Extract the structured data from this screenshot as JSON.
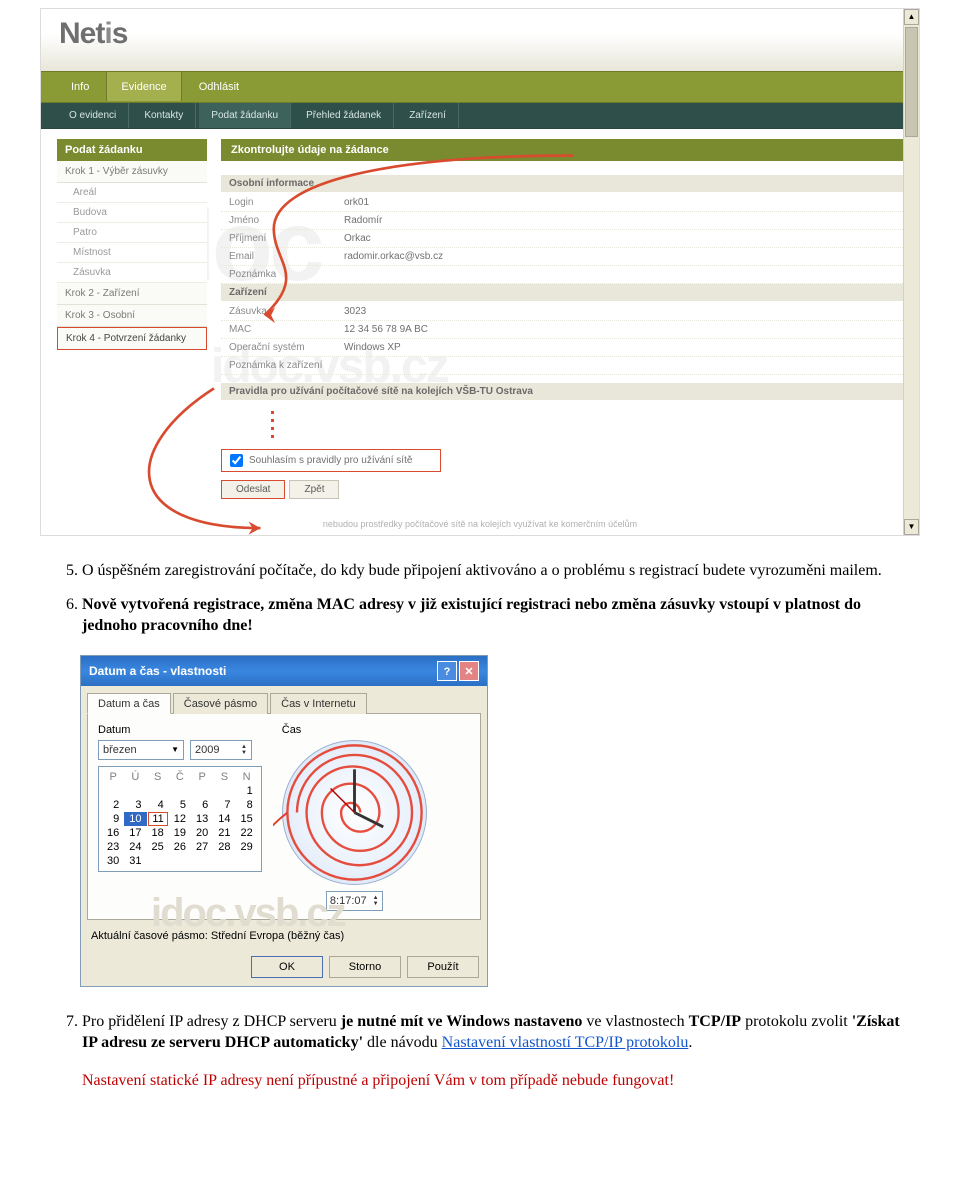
{
  "netis": {
    "logo": "Netis",
    "watermark_big": "idoc",
    "watermark_url": "idoc.vsb.cz",
    "main_tabs": [
      "Info",
      "Evidence",
      "Odhlásit"
    ],
    "main_active": 1,
    "sub_tabs": [
      "O evidenci",
      "Kontakty",
      "Podat žádanku",
      "Přehled žádanek",
      "Zařízení"
    ],
    "sub_active": 2,
    "sidebar": {
      "title": "Podat žádanku",
      "steps": [
        {
          "label": "Krok 1 - Výběr zásuvky",
          "subs": [
            "Areál",
            "Budova",
            "Patro",
            "Místnost",
            "Zásuvka"
          ]
        },
        {
          "label": "Krok 2 - Zařízení",
          "subs": []
        },
        {
          "label": "Krok 3 - Osobní",
          "subs": []
        },
        {
          "label": "Krok 4 - Potvrzení žádanky",
          "subs": [],
          "active": true
        }
      ]
    },
    "main": {
      "title": "Zkontrolujte údaje na žádance",
      "section_personal": "Osobní informace",
      "personal": [
        {
          "k": "Login",
          "v": "ork01"
        },
        {
          "k": "Jméno",
          "v": "Radomír"
        },
        {
          "k": "Příjmení",
          "v": "Orkac"
        },
        {
          "k": "Email",
          "v": "radomir.orkac@vsb.cz"
        },
        {
          "k": "Poznámka",
          "v": ""
        }
      ],
      "section_device": "Zařízení",
      "device": [
        {
          "k": "Zásuvka",
          "v": "3023"
        },
        {
          "k": "MAC",
          "v": "12 34 56 78 9A BC"
        },
        {
          "k": "Operační systém",
          "v": "Windows XP"
        },
        {
          "k": "Poznámka k zařízení",
          "v": ""
        }
      ],
      "rules_title": "Pravidla pro užívání počítačové sítě na kolejích VŠB-TU Ostrava",
      "agree_label": "Souhlasím s pravidly pro užívání sítě",
      "btn_submit": "Odeslat",
      "btn_back": "Zpět",
      "footer": "nebudou prostředky počítačové sítě na kolejích využívat ke komerčním účelům"
    },
    "annotation_color": "#d84b2f"
  },
  "doc": {
    "p5_num": "5.",
    "p5": "O úspěšném zaregistrování počítače, do kdy bude připojení aktivováno a o problému s registrací budete vyrozuměni mailem.",
    "p6_num": "6.",
    "p6": "Nově vytvořená registrace, změna MAC adresy v již existující registraci nebo změna zásuvky vstoupí v platnost do jednoho pracovního dne!",
    "p7_num": "7.",
    "p7_before": "Pro přidělení IP adresy z DHCP serveru ",
    "p7_b1": "je nutné mít ve Windows nastaveno",
    "p7_mid1": " ve vlastnostech ",
    "p7_b2": "TCP/IP",
    "p7_mid2": " protokolu zvolit ",
    "p7_b3": "'Získat IP adresu ze serveru DHCP automaticky'",
    "p7_mid3": " dle návodu ",
    "p7_link": "Nastavení vlastností TCP/IP protokolu",
    "p7_after": ".",
    "warn": "Nastavení statické IP adresy není přípustné a připojení Vám v tom případě nebude fungovat!"
  },
  "dt": {
    "title": "Datum a čas - vlastnosti",
    "tabs": [
      "Datum a čas",
      "Časové pásmo",
      "Čas v Internetu"
    ],
    "active_tab": 0,
    "group_date": "Datum",
    "group_time": "Čas",
    "month": "březen",
    "year": "2009",
    "dow": [
      "P",
      "Ú",
      "S",
      "Č",
      "P",
      "S",
      "N"
    ],
    "weeks": [
      [
        "",
        "",
        "",
        "",
        "",
        "",
        "1"
      ],
      [
        "2",
        "3",
        "4",
        "5",
        "6",
        "7",
        "8"
      ],
      [
        "9",
        "10",
        "11",
        "12",
        "13",
        "14",
        "15"
      ],
      [
        "16",
        "17",
        "18",
        "19",
        "20",
        "21",
        "22"
      ],
      [
        "23",
        "24",
        "25",
        "26",
        "27",
        "28",
        "29"
      ],
      [
        "30",
        "31",
        "",
        "",
        "",
        "",
        ""
      ]
    ],
    "today": "10",
    "ringed": "11",
    "time_value": "8:17:07",
    "tz_label": "Aktuální časové pásmo:",
    "tz_value": "Střední Evropa (běžný čas)",
    "btn_ok": "OK",
    "btn_cancel": "Storno",
    "btn_apply": "Použít",
    "watermark": "idoc.vsb.cz",
    "annot_color": "#e53b2a"
  }
}
